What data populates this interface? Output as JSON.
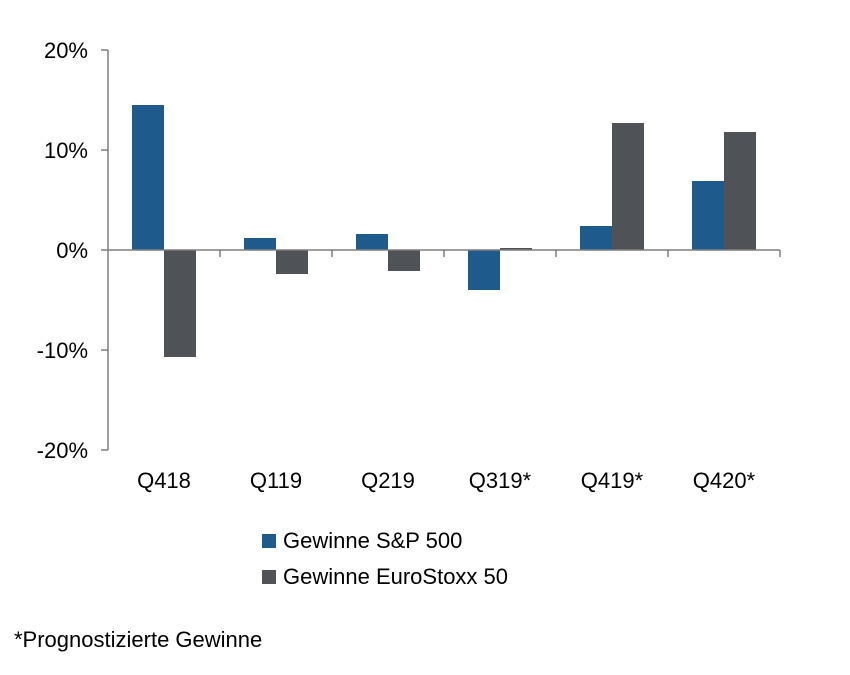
{
  "chart_data": {
    "type": "bar",
    "categories": [
      "Q418",
      "Q119",
      "Q219",
      "Q319*",
      "Q419*",
      "Q420*"
    ],
    "series": [
      {
        "name": "Gewinne S&P 500",
        "color": "#1f5a8c",
        "values": [
          14.5,
          1.2,
          1.6,
          -4.0,
          2.4,
          6.9
        ]
      },
      {
        "name": "Gewinne EuroStoxx 50",
        "color": "#4f5257",
        "values": [
          -10.7,
          -2.4,
          -2.1,
          0.2,
          12.7,
          11.8
        ]
      }
    ],
    "ylim": [
      -20,
      20
    ],
    "yticks": [
      20,
      10,
      0,
      -10,
      -20
    ],
    "ytick_labels": [
      "20%",
      "10%",
      "0%",
      "-10%",
      "-20%"
    ],
    "grid": false,
    "legend_position": "bottom",
    "footnote": "*Prognostizierte Gewinne"
  },
  "colors": {
    "axis": "#7f7f7f"
  }
}
